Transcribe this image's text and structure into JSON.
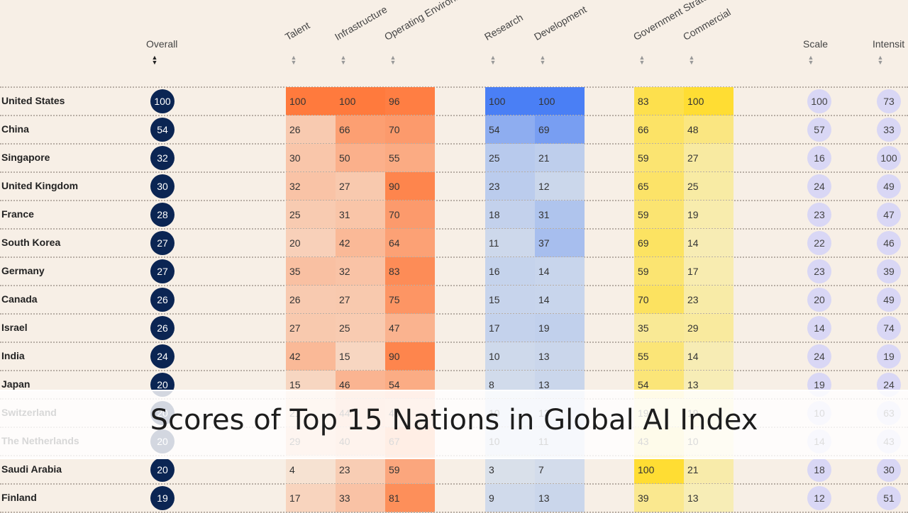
{
  "caption": "Scores of Top 15 Nations in Global AI Index",
  "colors": {
    "overall_circle": "#0b2553",
    "orange_scale": [
      "#f6e6d8",
      "#ff7a3d"
    ],
    "blue_scale": [
      "#dde3ea",
      "#4a7ff5"
    ],
    "yellow_scale": [
      "#f6efc9",
      "#ffdd33"
    ],
    "bubble": "#d9d7f5"
  },
  "chart_data": {
    "type": "table",
    "title": "",
    "columns": [
      "Overall",
      "Talent",
      "Infrastructure",
      "Operating Environment",
      "Research",
      "Development",
      "Government Strategy",
      "Commercial",
      "Scale",
      "Intensity"
    ],
    "header_labels": [
      "Overall",
      "Talent",
      "Infrastructure",
      "Operating Environme",
      "Research",
      "Development",
      "Government Strateg",
      "Commercial",
      "Scale",
      "Intensit"
    ],
    "sorted_by": "Overall",
    "sort_direction": "descending",
    "rows": [
      {
        "country": "United States",
        "values": [
          100,
          100,
          100,
          96,
          100,
          100,
          83,
          100,
          100,
          73
        ]
      },
      {
        "country": "China",
        "values": [
          54,
          26,
          66,
          70,
          54,
          69,
          66,
          48,
          57,
          33
        ]
      },
      {
        "country": "Singapore",
        "values": [
          32,
          30,
          50,
          55,
          25,
          21,
          59,
          27,
          16,
          100
        ]
      },
      {
        "country": "United Kingdom",
        "values": [
          30,
          32,
          27,
          90,
          23,
          12,
          65,
          25,
          24,
          49
        ]
      },
      {
        "country": "France",
        "values": [
          28,
          25,
          31,
          70,
          18,
          31,
          59,
          19,
          23,
          47
        ]
      },
      {
        "country": "South Korea",
        "values": [
          27,
          20,
          42,
          64,
          11,
          37,
          69,
          14,
          22,
          46
        ]
      },
      {
        "country": "Germany",
        "values": [
          27,
          35,
          32,
          83,
          16,
          14,
          59,
          17,
          23,
          39
        ]
      },
      {
        "country": "Canada",
        "values": [
          26,
          26,
          27,
          75,
          15,
          14,
          70,
          23,
          20,
          49
        ]
      },
      {
        "country": "Israel",
        "values": [
          26,
          27,
          25,
          47,
          17,
          19,
          35,
          29,
          14,
          74
        ]
      },
      {
        "country": "India",
        "values": [
          24,
          42,
          15,
          90,
          10,
          13,
          55,
          14,
          24,
          19
        ]
      },
      {
        "country": "Japan",
        "values": [
          20,
          15,
          46,
          54,
          8,
          13,
          54,
          13,
          19,
          24
        ]
      },
      {
        "country": "Switzerland",
        "values": [
          20,
          21,
          44,
          40,
          10,
          13,
          19,
          19,
          10,
          63
        ]
      },
      {
        "country": "The Netherlands",
        "values": [
          20,
          29,
          40,
          67,
          10,
          11,
          43,
          10,
          14,
          43
        ]
      },
      {
        "country": "Saudi Arabia",
        "values": [
          20,
          4,
          23,
          59,
          3,
          7,
          100,
          21,
          18,
          30
        ]
      },
      {
        "country": "Finland",
        "values": [
          19,
          17,
          33,
          81,
          9,
          13,
          39,
          13,
          12,
          51
        ]
      }
    ]
  }
}
